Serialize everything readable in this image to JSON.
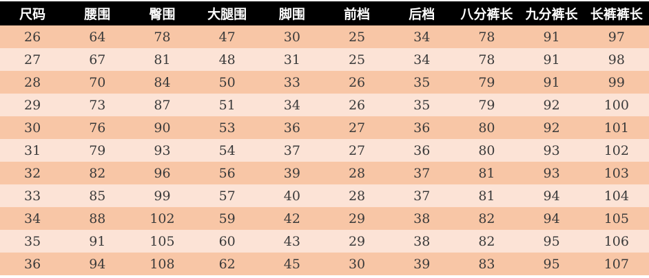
{
  "colors": {
    "header_bg": "#000000",
    "header_text": "#ffffff",
    "row_dark": "#f8c6a6",
    "row_light": "#fce3d6",
    "cell_text": "#3a3a3a"
  },
  "table": {
    "headers": [
      "尺码",
      "腰围",
      "臀围",
      "大腿围",
      "脚围",
      "前档",
      "后档",
      "八分裤长",
      "九分裤长",
      "长裤裤长"
    ],
    "rows": [
      [
        "26",
        "64",
        "78",
        "47",
        "30",
        "25",
        "34",
        "78",
        "91",
        "97"
      ],
      [
        "27",
        "67",
        "81",
        "48",
        "31",
        "25",
        "34",
        "78",
        "91",
        "98"
      ],
      [
        "28",
        "70",
        "84",
        "50",
        "33",
        "26",
        "35",
        "79",
        "91",
        "99"
      ],
      [
        "29",
        "73",
        "87",
        "51",
        "34",
        "26",
        "35",
        "79",
        "92",
        "100"
      ],
      [
        "30",
        "76",
        "90",
        "53",
        "36",
        "27",
        "36",
        "80",
        "92",
        "101"
      ],
      [
        "31",
        "79",
        "93",
        "54",
        "37",
        "27",
        "36",
        "80",
        "93",
        "102"
      ],
      [
        "32",
        "82",
        "96",
        "56",
        "39",
        "28",
        "37",
        "81",
        "93",
        "103"
      ],
      [
        "33",
        "85",
        "99",
        "57",
        "40",
        "28",
        "37",
        "81",
        "94",
        "104"
      ],
      [
        "34",
        "88",
        "102",
        "59",
        "42",
        "29",
        "38",
        "82",
        "94",
        "105"
      ],
      [
        "35",
        "91",
        "105",
        "60",
        "43",
        "29",
        "38",
        "82",
        "95",
        "106"
      ],
      [
        "36",
        "94",
        "108",
        "62",
        "45",
        "30",
        "39",
        "83",
        "95",
        "107"
      ]
    ]
  }
}
